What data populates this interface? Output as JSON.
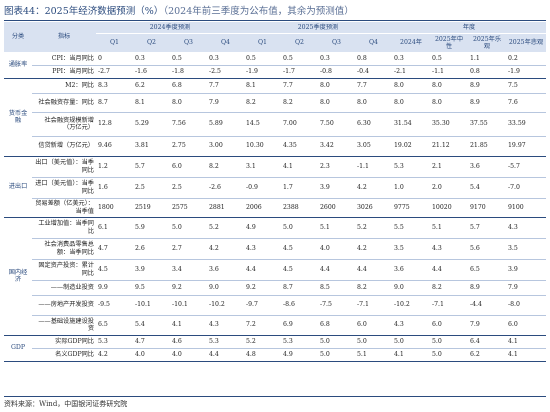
{
  "title": {
    "prefix": "图表44：",
    "main": "2025年经济数据预测（%）",
    "note": "（2024年前三季度为公布值，其余为预测值）"
  },
  "header": {
    "category": "分类",
    "indicator": "指标",
    "group_2024": "2024季度预测",
    "group_2025": "2025季度预测",
    "group_year": "年度",
    "columns": [
      "Q1",
      "Q2",
      "Q3",
      "Q4",
      "Q1",
      "Q2",
      "Q3",
      "Q4",
      "2024年",
      "2025年中性",
      "2025年乐观",
      "2025年悲观"
    ]
  },
  "sections": [
    {
      "category": "通胀率",
      "rows": [
        {
          "indicator": "CPI：当月同比",
          "values": [
            "0",
            "0.3",
            "0.5",
            "0.3",
            "0.5",
            "0.5",
            "0.3",
            "0.8",
            "0.3",
            "0.5",
            "1.1",
            "0.2"
          ]
        },
        {
          "indicator": "PPI：当月同比",
          "values": [
            "-2.7",
            "-1.6",
            "-1.8",
            "-2.5",
            "-1.9",
            "-1.7",
            "-0.8",
            "-0.4",
            "-2.1",
            "-1.1",
            "0.8",
            "-1.9"
          ]
        }
      ]
    },
    {
      "category": "货币金融",
      "rows": [
        {
          "indicator": "M2：同比",
          "values": [
            "8.3",
            "6.2",
            "6.8",
            "7.7",
            "8.1",
            "7.7",
            "8.0",
            "7.7",
            "8.0",
            "8.0",
            "8.9",
            "7.5"
          ]
        },
        {
          "indicator": "社会融资存量：同比",
          "values": [
            "8.7",
            "8.1",
            "8.0",
            "7.9",
            "8.2",
            "8.2",
            "8.0",
            "8.0",
            "8.0",
            "8.0",
            "8.9",
            "7.6"
          ]
        },
        {
          "indicator": "社会融资规模新增（万亿元）",
          "values": [
            "12.8",
            "5.29",
            "7.56",
            "5.89",
            "14.5",
            "7.00",
            "7.50",
            "6.30",
            "31.54",
            "35.30",
            "37.55",
            "33.59"
          ]
        },
        {
          "indicator": "信贷新增（万亿元）",
          "values": [
            "9.46",
            "3.81",
            "2.75",
            "3.00",
            "10.30",
            "4.35",
            "3.42",
            "3.05",
            "19.02",
            "21.12",
            "21.85",
            "19.97"
          ]
        }
      ]
    },
    {
      "category": "进出口",
      "rows": [
        {
          "indicator": "出口（美元值）：当季同比",
          "values": [
            "1.2",
            "5.7",
            "6.0",
            "8.2",
            "3.1",
            "4.1",
            "2.3",
            "-1.1",
            "5.3",
            "2.1",
            "3.6",
            "-5.7"
          ]
        },
        {
          "indicator": "进口（美元值）：当季同比",
          "values": [
            "1.6",
            "2.5",
            "2.5",
            "-2.6",
            "-0.9",
            "1.7",
            "3.9",
            "4.2",
            "1.0",
            "2.0",
            "5.4",
            "-7.0"
          ]
        },
        {
          "indicator": "贸易差额（亿美元）：当季值",
          "values": [
            "1800",
            "2519",
            "2575",
            "2881",
            "2006",
            "2388",
            "2600",
            "3026",
            "9775",
            "10020",
            "9170",
            "9100"
          ]
        }
      ]
    },
    {
      "category": "国内经济",
      "rows": [
        {
          "indicator": "工业增加值：当季同比",
          "values": [
            "6.1",
            "5.9",
            "5.0",
            "5.2",
            "4.9",
            "5.0",
            "5.1",
            "5.2",
            "5.5",
            "5.1",
            "5.7",
            "4.3"
          ]
        },
        {
          "indicator": "社会消费品零售总额：当季同比",
          "values": [
            "4.7",
            "2.6",
            "2.7",
            "4.2",
            "4.3",
            "4.5",
            "4.0",
            "4.2",
            "3.5",
            "4.3",
            "5.6",
            "3.5"
          ]
        },
        {
          "indicator": "固定资产投资：累计同比",
          "values": [
            "4.5",
            "3.9",
            "3.4",
            "3.6",
            "4.4",
            "4.5",
            "4.4",
            "4.4",
            "3.6",
            "4.4",
            "6.5",
            "3.9"
          ]
        },
        {
          "indicator": "——制造业投资",
          "values": [
            "9.9",
            "9.5",
            "9.2",
            "9.0",
            "9.2",
            "8.7",
            "8.5",
            "8.2",
            "9.0",
            "8.2",
            "8.9",
            "7.9"
          ]
        },
        {
          "indicator": "——房地产开发投资",
          "values": [
            "-9.5",
            "-10.1",
            "-10.1",
            "-10.2",
            "-9.7",
            "-8.6",
            "-7.5",
            "-7.1",
            "-10.2",
            "-7.1",
            "-4.4",
            "-8.0"
          ]
        },
        {
          "indicator": "——基础设施建设投资",
          "values": [
            "6.5",
            "5.4",
            "4.1",
            "4.3",
            "7.2",
            "6.9",
            "6.8",
            "6.0",
            "4.3",
            "6.0",
            "7.9",
            "6.0"
          ]
        }
      ]
    },
    {
      "category": "GDP",
      "rows": [
        {
          "indicator": "实际GDP同比",
          "values": [
            "5.3",
            "4.7",
            "4.6",
            "5.3",
            "5.2",
            "5.3",
            "5.0",
            "5.0",
            "5.0",
            "5.0",
            "6.4",
            "4.1"
          ]
        },
        {
          "indicator": "名义GDP同比",
          "values": [
            "4.2",
            "4.0",
            "4.0",
            "4.4",
            "4.8",
            "4.9",
            "5.0",
            "5.1",
            "4.1",
            "5.0",
            "6.2",
            "4.1"
          ]
        }
      ]
    }
  ],
  "source": "资料来源：Wind，中国银河证券研究院"
}
